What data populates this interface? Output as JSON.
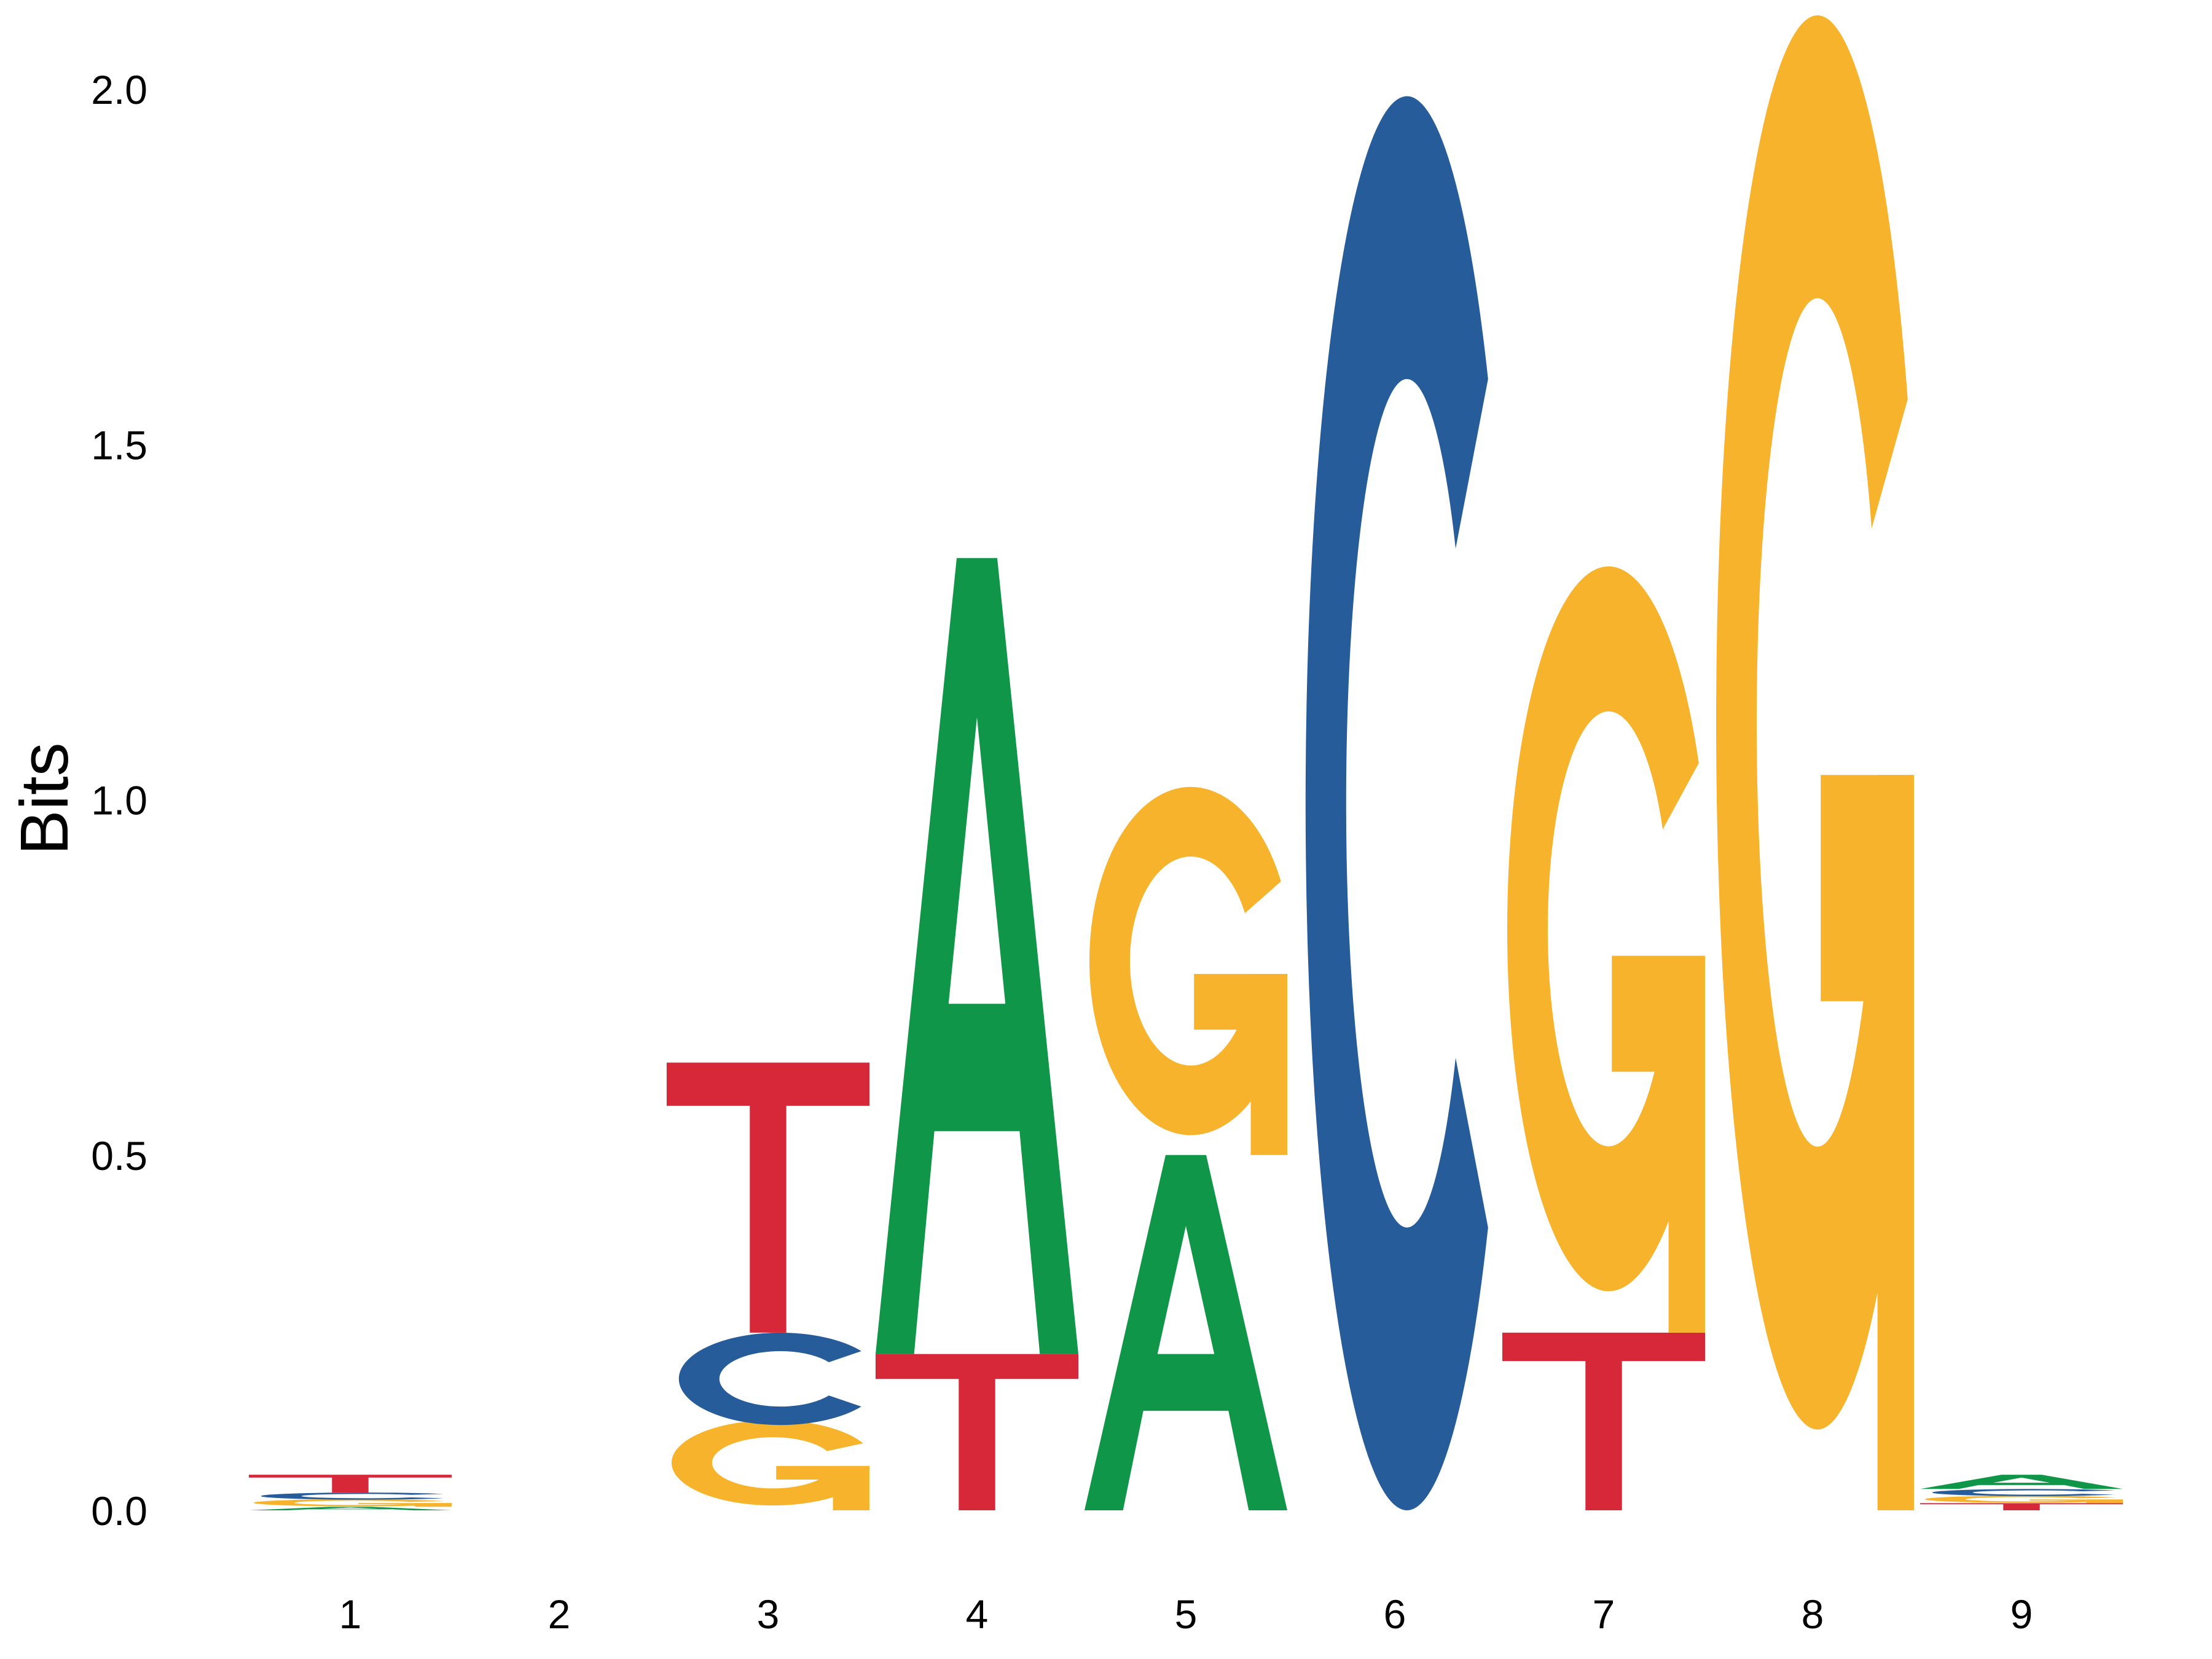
{
  "chart_data": {
    "type": "sequence-logo",
    "title": "",
    "xlabel": "",
    "ylabel": "Bits",
    "ylim": [
      0,
      2
    ],
    "yticks": [
      "0.0",
      "0.5",
      "1.0",
      "1.5",
      "2.0"
    ],
    "positions": [
      "1",
      "2",
      "3",
      "4",
      "5",
      "6",
      "7",
      "8",
      "9"
    ],
    "grid": false,
    "legend": "none",
    "colors": {
      "A": "#109648",
      "C": "#255c99",
      "G": "#f7b32b",
      "T": "#d62839"
    },
    "stacks": [
      {
        "position": "1",
        "letters": [
          {
            "base": "A",
            "bits": 0.005
          },
          {
            "base": "G",
            "bits": 0.01
          },
          {
            "base": "C",
            "bits": 0.01
          },
          {
            "base": "T",
            "bits": 0.025
          }
        ]
      },
      {
        "position": "2",
        "letters": []
      },
      {
        "position": "3",
        "letters": [
          {
            "base": "G",
            "bits": 0.12
          },
          {
            "base": "C",
            "bits": 0.13
          },
          {
            "base": "T",
            "bits": 0.38
          }
        ]
      },
      {
        "position": "4",
        "letters": [
          {
            "base": "T",
            "bits": 0.22
          },
          {
            "base": "A",
            "bits": 1.12
          }
        ]
      },
      {
        "position": "5",
        "letters": [
          {
            "base": "A",
            "bits": 0.5
          },
          {
            "base": "G",
            "bits": 0.49
          }
        ]
      },
      {
        "position": "6",
        "letters": [
          {
            "base": "C",
            "bits": 1.99
          }
        ]
      },
      {
        "position": "7",
        "letters": [
          {
            "base": "T",
            "bits": 0.25
          },
          {
            "base": "G",
            "bits": 1.02
          }
        ]
      },
      {
        "position": "8",
        "letters": [
          {
            "base": "G",
            "bits": 1.99
          }
        ]
      },
      {
        "position": "9",
        "letters": [
          {
            "base": "T",
            "bits": 0.01
          },
          {
            "base": "G",
            "bits": 0.01
          },
          {
            "base": "C",
            "bits": 0.01
          },
          {
            "base": "A",
            "bits": 0.02
          }
        ]
      }
    ]
  }
}
